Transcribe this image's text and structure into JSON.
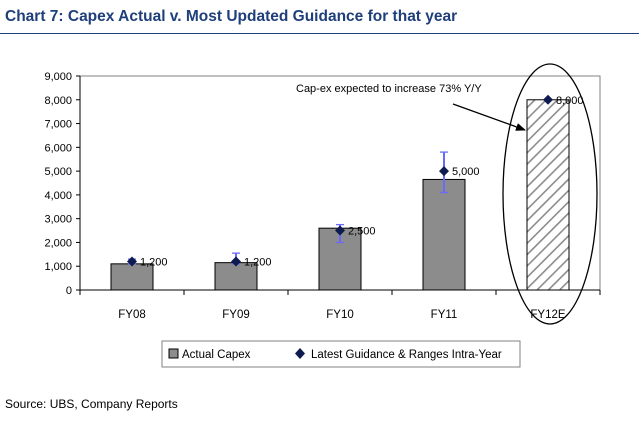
{
  "title": "Chart 7: Capex Actual v. Most Updated Guidance for that year",
  "source": "Source: UBS, Company Reports",
  "colors": {
    "title": "#1f3f7a",
    "actual_bar": "#8c8c8c",
    "guidance_marker": "#0d1b4f",
    "range_line": "#6a6aff"
  },
  "chart_data": {
    "type": "bar",
    "title": "Chart 7: Capex Actual v. Most Updated Guidance for that year",
    "xlabel": "",
    "ylabel": "",
    "ylim": [
      0,
      9000
    ],
    "yticks": [
      0,
      1000,
      2000,
      3000,
      4000,
      5000,
      6000,
      7000,
      8000,
      9000
    ],
    "ytick_labels": [
      "0",
      "1,000",
      "2,000",
      "3,000",
      "4,000",
      "5,000",
      "6,000",
      "7,000",
      "8,000",
      "9,000"
    ],
    "categories": [
      "FY08",
      "FY09",
      "FY10",
      "FY11",
      "FY12E"
    ],
    "series": [
      {
        "name": "Actual Capex",
        "kind": "bar",
        "values": [
          1100,
          1150,
          2600,
          4650,
          8000
        ],
        "hatched": [
          false,
          false,
          false,
          false,
          true
        ]
      },
      {
        "name": "Latest Guidance & Ranges Intra-Year",
        "kind": "marker",
        "values": [
          1200,
          1200,
          2500,
          5000,
          8000
        ],
        "labels": [
          "1,200",
          "1,200",
          "2,500",
          "5,000",
          "8,000"
        ],
        "range_low": [
          1100,
          1100,
          2000,
          4100,
          null
        ],
        "range_high": [
          1300,
          1550,
          2750,
          5800,
          null
        ]
      }
    ],
    "annotations": [
      {
        "text": "Cap-ex expected to increase 73% Y/Y",
        "target_category": "FY12E"
      }
    ],
    "legend_position": "bottom"
  }
}
